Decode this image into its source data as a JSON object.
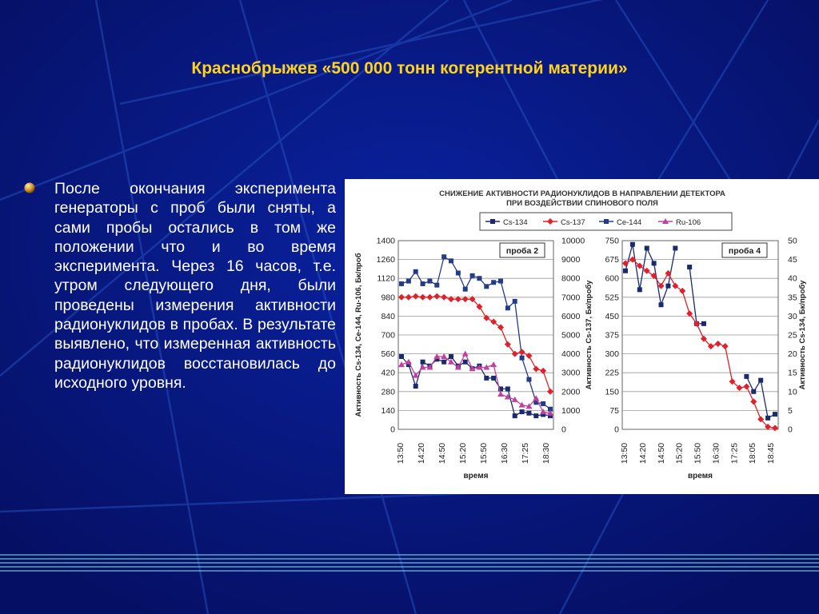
{
  "slide": {
    "title": "Краснобрыжев «500 000 тонн когерентной материи»",
    "paragraph": "После окончания эксперимента генераторы с проб были сняты, а сами пробы остались в том же положении что и во время эксперимента. Через 16 часов, т.е. утром следующего дня, были проведены измерения активности радионуклидов в пробах. В результате выявлено, что измеренная активность радионуклидов восстановилась до исходного уровня.",
    "bullet_icon": "sphere-bullet-icon",
    "colors": {
      "background": "#07157a",
      "title": "#ffd21e",
      "text": "#ffffff"
    }
  },
  "chart_data": {
    "figure_title_line1": "СНИЖЕНИЕ АКТИВНОСТИ РАДИОНУКЛИДОВ В НАПРАВЛЕНИИ ДЕТЕКТОРА",
    "figure_title_line2": "ПРИ ВОЗДЕЙСТВИИ СПИНОВОГО ПОЛЯ",
    "legend": [
      {
        "name": "Cs-134",
        "color": "#1a2a6e",
        "marker": "square"
      },
      {
        "name": "Cs-137",
        "color": "#e0202a",
        "marker": "diamond"
      },
      {
        "name": "Ce-144",
        "color": "#243c86",
        "marker": "square"
      },
      {
        "name": "Ru-106",
        "color": "#c040a0",
        "marker": "triangle"
      }
    ],
    "charts": [
      {
        "type": "line",
        "panel_label": "проба 2",
        "xlabel": "время",
        "ylabel_left": "Активность Cs-134, Ce-144, Ru-106, Бк/проб",
        "ylabel_right": "",
        "y_left_ticks": [
          0,
          140,
          280,
          420,
          560,
          700,
          840,
          980,
          1120,
          1260,
          1400
        ],
        "y_right_ticks": [
          0,
          1000,
          2000,
          3000,
          4000,
          5000,
          6000,
          7000,
          8000,
          9000,
          10000
        ],
        "x_tick_labels": [
          "13:50",
          "14:20",
          "14:50",
          "15:20",
          "15:50",
          "16:30",
          "17:25",
          "18:30"
        ],
        "ylim_left": [
          0,
          1400
        ],
        "ylim_right": [
          0,
          10000
        ],
        "series": [
          {
            "name": "Cs-134",
            "axis": "left",
            "values": [
              540,
              480,
              320,
              500,
              470,
              520,
              500,
              540,
              470,
              500,
              450,
              470,
              380,
              380,
              300,
              300,
              100,
              130,
              120,
              100,
              110,
              100
            ]
          },
          {
            "name": "Ce-144",
            "axis": "left",
            "values": [
              1080,
              1100,
              1170,
              1080,
              1100,
              1070,
              1280,
              1250,
              1160,
              1040,
              1140,
              1120,
              1060,
              1090,
              1100,
              900,
              950,
              530,
              370,
              200,
              190,
              150
            ]
          },
          {
            "name": "Cs-137",
            "axis": "right",
            "values": [
              7000,
              7000,
              7050,
              7000,
              7000,
              7050,
              7000,
              6900,
              6900,
              6900,
              6900,
              6500,
              5900,
              5700,
              5400,
              4500,
              4000,
              4100,
              3900,
              3200,
              3100,
              2000
            ]
          },
          {
            "name": "Ru-106",
            "axis": "left",
            "values": [
              480,
              500,
              400,
              460,
              460,
              540,
              540,
              500,
              460,
              560,
              450,
              460,
              460,
              480,
              260,
              240,
              220,
              180,
              170,
              230,
              130,
              120
            ]
          }
        ]
      },
      {
        "type": "line",
        "panel_label": "проба 4",
        "xlabel": "время",
        "ylabel_left": "Активность Cs-137, Бк/пробу",
        "ylabel_right": "Активность Cs-134, Бк/пробу",
        "y_left_ticks": [
          0,
          75,
          150,
          225,
          300,
          375,
          450,
          525,
          600,
          675,
          750
        ],
        "y_right_ticks": [
          0,
          5,
          10,
          15,
          20,
          25,
          30,
          35,
          40,
          45,
          50
        ],
        "x_tick_labels": [
          "13:50",
          "14:20",
          "14:50",
          "15:20",
          "15:50",
          "16:30",
          "17:25",
          "18:05",
          "18:45"
        ],
        "ylim_left": [
          0,
          750
        ],
        "ylim_right": [
          0,
          50
        ],
        "series": [
          {
            "name": "Cs-134",
            "axis": "right",
            "values": [
              42,
              49,
              37,
              48,
              44,
              33,
              38,
              48,
              null,
              43,
              28,
              28,
              null,
              null,
              null,
              null,
              null,
              14,
              10,
              13,
              3,
              4
            ]
          },
          {
            "name": "Cs-137",
            "axis": "left",
            "values": [
              660,
              675,
              650,
              630,
              610,
              570,
              620,
              570,
              550,
              460,
              420,
              360,
              330,
              340,
              330,
              190,
              165,
              170,
              110,
              40,
              10,
              5
            ]
          }
        ]
      }
    ]
  }
}
